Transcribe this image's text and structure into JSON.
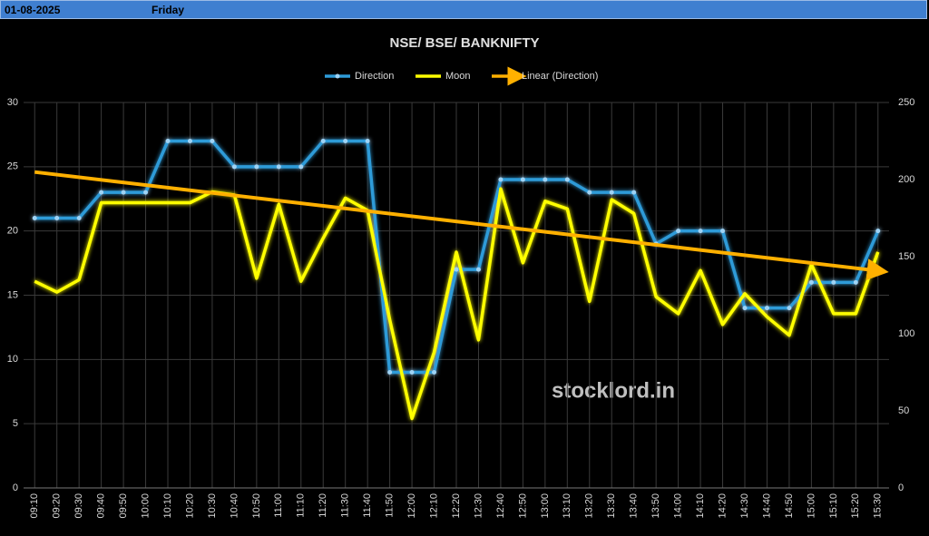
{
  "header": {
    "date": "01-08-2025",
    "day": "Friday"
  },
  "chart_data": {
    "type": "line",
    "title": "NSE/ BSE/ BANKNIFTY",
    "watermark": "stocklord.in",
    "categories": [
      "09:10",
      "09:20",
      "09:30",
      "09:40",
      "09:50",
      "10:00",
      "10:10",
      "10:20",
      "10:30",
      "10:40",
      "10:50",
      "11:00",
      "11:10",
      "11:20",
      "11:30",
      "11:40",
      "11:50",
      "12:00",
      "12:10",
      "12:20",
      "12:30",
      "12:40",
      "12:50",
      "13:00",
      "13:10",
      "13:20",
      "13:30",
      "13:40",
      "13:50",
      "14:00",
      "14:10",
      "14:20",
      "14:30",
      "14:40",
      "14:50",
      "15:00",
      "15:10",
      "15:20",
      "15:30"
    ],
    "series": [
      {
        "name": "Direction",
        "color": "#2e9bd8",
        "values": [
          21,
          21,
          21,
          23,
          23,
          23,
          27,
          27,
          27,
          25,
          25,
          25,
          25,
          27,
          27,
          27,
          9,
          9,
          9,
          17,
          17,
          24,
          24,
          24,
          24,
          23,
          23,
          23,
          19,
          20,
          20,
          20,
          14,
          14,
          14,
          16,
          16,
          16,
          20
        ]
      },
      {
        "name": "Moon",
        "color": "#ffff00",
        "axis": "y2",
        "values": [
          134,
          127,
          135,
          185,
          185,
          185,
          185,
          185,
          192,
          190,
          136,
          184,
          134,
          162,
          188,
          180,
          109,
          45,
          88,
          153,
          96,
          194,
          146,
          186,
          181,
          121,
          187,
          178,
          124,
          113,
          141,
          106,
          126,
          111,
          99,
          145,
          113,
          113,
          153
        ]
      }
    ],
    "trendline": {
      "name": "Linear (Direction)",
      "color": "#ffb000",
      "of": "Direction"
    },
    "ylim": [
      0,
      30
    ],
    "yticks": [
      0,
      5,
      10,
      15,
      20,
      25,
      30
    ],
    "y2lim": [
      0,
      250
    ],
    "y2ticks": [
      0,
      50,
      100,
      150,
      200,
      250
    ],
    "grid": true
  }
}
